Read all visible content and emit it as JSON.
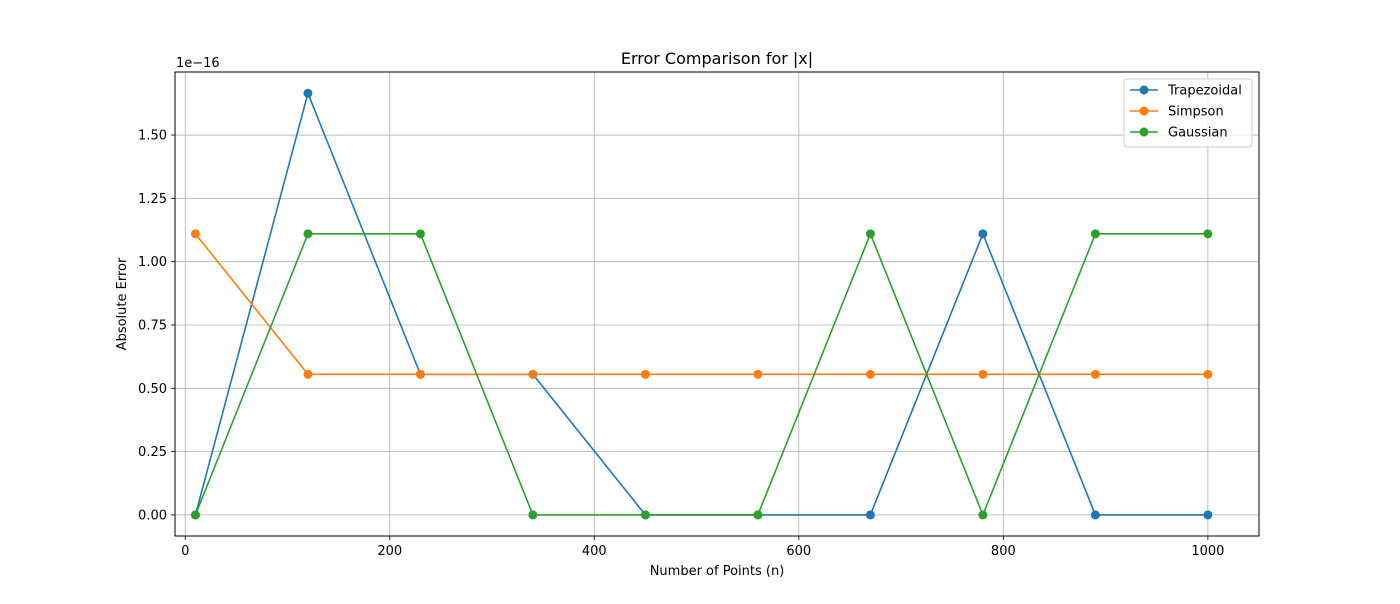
{
  "chart_data": {
    "type": "line",
    "title": "Error Comparison for |x|",
    "xlabel": "Number of Points (n)",
    "ylabel": "Absolute Error",
    "y_offset_label": "1e−16",
    "xlim": [
      -10,
      1050
    ],
    "ylim": [
      -0.0833,
      1.749
    ],
    "xticks": [
      0,
      200,
      400,
      600,
      800,
      1000
    ],
    "xtick_labels": [
      "0",
      "200",
      "400",
      "600",
      "800",
      "1000"
    ],
    "yticks": [
      0.0,
      0.25,
      0.5,
      0.75,
      1.0,
      1.25,
      1.5
    ],
    "ytick_labels": [
      "0.00",
      "0.25",
      "0.50",
      "0.75",
      "1.00",
      "1.25",
      "1.50"
    ],
    "grid": true,
    "legend_position": "top-right",
    "x": [
      10,
      120,
      230,
      340,
      450,
      560,
      670,
      780,
      890,
      1000
    ],
    "series": [
      {
        "name": "Trapezoidal",
        "color": "#1f77b4",
        "values": [
          0.0,
          1.665,
          0.555,
          0.555,
          0.0,
          0.0,
          0.0,
          1.11,
          0.0,
          0.0
        ]
      },
      {
        "name": "Simpson",
        "color": "#ff7f0e",
        "values": [
          1.11,
          0.555,
          0.555,
          0.555,
          0.555,
          0.555,
          0.555,
          0.555,
          0.555,
          0.555
        ]
      },
      {
        "name": "Gaussian",
        "color": "#2ca02c",
        "values": [
          0.0,
          1.11,
          1.11,
          0.0,
          0.0,
          0.0,
          1.11,
          0.0,
          1.11,
          1.11
        ]
      }
    ]
  }
}
